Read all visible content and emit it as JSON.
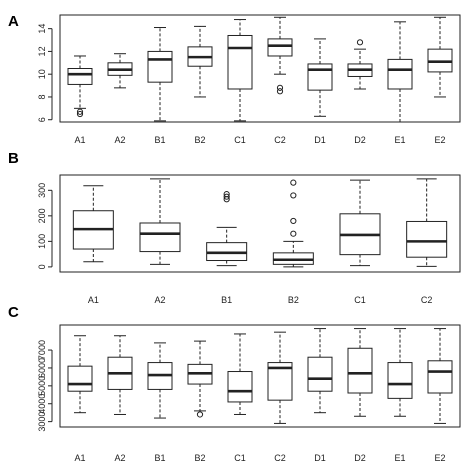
{
  "figure": {
    "colors": {
      "box_fill": "#ffffff",
      "line": "#222222",
      "frame": "#222222"
    }
  },
  "chart_data": [
    {
      "type": "box",
      "panel_label": "A",
      "categories": [
        "A1",
        "A2",
        "B1",
        "B2",
        "C1",
        "C2",
        "D1",
        "D2",
        "E1",
        "E2"
      ],
      "y_ticks": [
        6,
        8,
        10,
        12,
        14
      ],
      "ylim": [
        5.8,
        15.2
      ],
      "boxes": [
        {
          "low": 7.0,
          "q1": 9.1,
          "median": 10.0,
          "q3": 10.5,
          "high": 11.6,
          "outliers": [
            6.7,
            6.5
          ]
        },
        {
          "low": 8.8,
          "q1": 9.9,
          "median": 10.4,
          "q3": 11.0,
          "high": 11.8,
          "outliers": []
        },
        {
          "low": 5.9,
          "q1": 9.3,
          "median": 11.3,
          "q3": 12.0,
          "high": 14.1,
          "outliers": []
        },
        {
          "low": 8.0,
          "q1": 10.7,
          "median": 11.5,
          "q3": 12.4,
          "high": 14.2,
          "outliers": []
        },
        {
          "low": 5.9,
          "q1": 8.7,
          "median": 12.3,
          "q3": 13.4,
          "high": 14.8,
          "outliers": []
        },
        {
          "low": 10.0,
          "q1": 11.6,
          "median": 12.5,
          "q3": 13.1,
          "high": 15.0,
          "outliers": [
            8.8,
            8.5
          ]
        },
        {
          "low": 6.3,
          "q1": 8.6,
          "median": 10.4,
          "q3": 10.9,
          "high": 13.1,
          "outliers": []
        },
        {
          "low": 8.7,
          "q1": 9.8,
          "median": 10.4,
          "q3": 10.9,
          "high": 12.2,
          "outliers": [
            12.8
          ]
        },
        {
          "low": 5.8,
          "q1": 8.7,
          "median": 10.4,
          "q3": 11.3,
          "high": 14.6,
          "outliers": []
        },
        {
          "low": 8.0,
          "q1": 10.2,
          "median": 11.1,
          "q3": 12.2,
          "high": 15.0,
          "outliers": []
        }
      ]
    },
    {
      "type": "box",
      "panel_label": "B",
      "categories": [
        "A1",
        "A2",
        "B1",
        "B2",
        "C1",
        "C2"
      ],
      "y_ticks": [
        0,
        100,
        200,
        300
      ],
      "ylim": [
        -20,
        360
      ],
      "boxes": [
        {
          "low": 20,
          "q1": 70,
          "median": 148,
          "q3": 220,
          "high": 318,
          "outliers": []
        },
        {
          "low": 10,
          "q1": 60,
          "median": 130,
          "q3": 172,
          "high": 345,
          "outliers": []
        },
        {
          "low": 5,
          "q1": 25,
          "median": 55,
          "q3": 95,
          "high": 155,
          "outliers": [
            265,
            275,
            285
          ]
        },
        {
          "low": 0,
          "q1": 10,
          "median": 28,
          "q3": 55,
          "high": 100,
          "outliers": [
            130,
            180,
            280,
            330
          ]
        },
        {
          "low": 5,
          "q1": 48,
          "median": 125,
          "q3": 208,
          "high": 340,
          "outliers": []
        },
        {
          "low": 2,
          "q1": 38,
          "median": 100,
          "q3": 178,
          "high": 345,
          "outliers": []
        }
      ]
    },
    {
      "type": "box",
      "panel_label": "C",
      "categories": [
        "A1",
        "A2",
        "B1",
        "B2",
        "C1",
        "C2",
        "D1",
        "D2",
        "E1",
        "E2"
      ],
      "y_ticks": [
        3000,
        4000,
        5000,
        6000,
        7000
      ],
      "ylim": [
        2700,
        8400
      ],
      "boxes": [
        {
          "low": 3500,
          "q1": 4700,
          "median": 5100,
          "q3": 6100,
          "high": 7800,
          "outliers": []
        },
        {
          "low": 3400,
          "q1": 4800,
          "median": 5700,
          "q3": 6600,
          "high": 7800,
          "outliers": []
        },
        {
          "low": 3200,
          "q1": 4800,
          "median": 5600,
          "q3": 6300,
          "high": 7400,
          "outliers": []
        },
        {
          "low": 3600,
          "q1": 5100,
          "median": 5700,
          "q3": 6200,
          "high": 7500,
          "outliers": [
            3400
          ]
        },
        {
          "low": 3400,
          "q1": 4100,
          "median": 4700,
          "q3": 5800,
          "high": 7900,
          "outliers": []
        },
        {
          "low": 2900,
          "q1": 4200,
          "median": 6000,
          "q3": 6300,
          "high": 8000,
          "outliers": []
        },
        {
          "low": 3500,
          "q1": 4700,
          "median": 5400,
          "q3": 6600,
          "high": 8200,
          "outliers": []
        },
        {
          "low": 3300,
          "q1": 4600,
          "median": 5700,
          "q3": 7100,
          "high": 8200,
          "outliers": []
        },
        {
          "low": 3300,
          "q1": 4300,
          "median": 5100,
          "q3": 6300,
          "high": 8200,
          "outliers": []
        },
        {
          "low": 2900,
          "q1": 4600,
          "median": 5800,
          "q3": 6400,
          "high": 8200,
          "outliers": []
        }
      ]
    }
  ]
}
